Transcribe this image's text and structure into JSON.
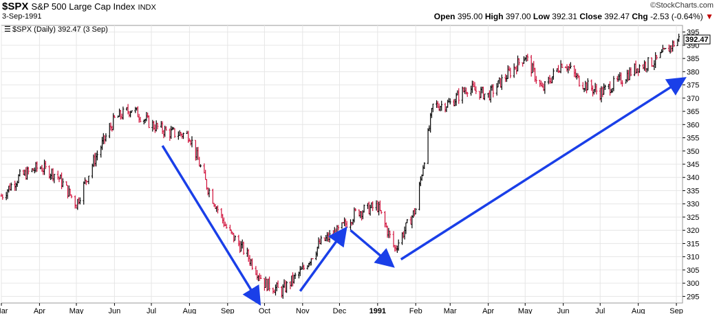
{
  "header": {
    "symbol": "$SPX",
    "name": "S&P 500 Large Cap Index",
    "exchange": "INDX",
    "date": "3-Sep-1991",
    "brand": "©StockCharts.com",
    "open_label": "Open",
    "open": "395.00",
    "high_label": "High",
    "high": "397.00",
    "low_label": "Low",
    "low": "392.31",
    "close_label": "Close",
    "close": "392.47",
    "chg_label": "Chg",
    "chg": "-2.53 (-0.64%)",
    "down_arrow": "▼"
  },
  "legend": "$SPX (Daily) 392.47 (3 Sep)",
  "last_price_tag": "392.47",
  "colors": {
    "up": "#000000",
    "down": "#d0103a",
    "arrow": "#1a3fe8",
    "grid": "#e6e6e6"
  },
  "chart_data": {
    "type": "line",
    "series": [
      {
        "name": "$SPX (Daily)",
        "x": [
          "1990-03-01",
          "1990-03-15",
          "1990-04-01",
          "1990-04-15",
          "1990-05-01",
          "1990-05-15",
          "1990-06-01",
          "1990-06-15",
          "1990-07-01",
          "1990-07-15",
          "1990-08-01",
          "1990-08-15",
          "1990-09-01",
          "1990-09-15",
          "1990-10-01",
          "1990-10-15",
          "1990-11-01",
          "1990-11-15",
          "1990-12-01",
          "1990-12-15",
          "1991-01-01",
          "1991-01-15",
          "1991-02-01",
          "1991-02-15",
          "1991-03-01",
          "1991-03-15",
          "1991-04-01",
          "1991-04-15",
          "1991-05-01",
          "1991-05-15",
          "1991-06-01",
          "1991-06-15",
          "1991-07-01",
          "1991-07-15",
          "1991-08-01",
          "1991-08-15",
          "1991-09-03"
        ],
        "values": [
          333,
          340,
          344,
          341,
          330,
          346,
          362,
          366,
          360,
          357,
          356,
          337,
          320,
          312,
          300,
          297,
          305,
          315,
          320,
          327,
          329,
          313,
          328,
          367,
          368,
          374,
          371,
          378,
          386,
          373,
          384,
          376,
          372,
          376,
          382,
          384,
          392.47
        ]
      }
    ],
    "xticks": [
      "Mar",
      "Apr",
      "May",
      "Jun",
      "Jul",
      "Aug",
      "Sep",
      "Oct",
      "Nov",
      "Dec",
      "1991",
      "Feb",
      "Mar",
      "Apr",
      "May",
      "Jun",
      "Jul",
      "Aug",
      "Sep"
    ],
    "xtick_dates": [
      "1990-03-01",
      "1990-04-01",
      "1990-05-01",
      "1990-06-01",
      "1990-07-01",
      "1990-08-01",
      "1990-09-01",
      "1990-10-01",
      "1990-11-01",
      "1990-12-01",
      "1991-01-01",
      "1991-02-01",
      "1991-03-01",
      "1991-04-01",
      "1991-05-01",
      "1991-06-01",
      "1991-07-01",
      "1991-08-01",
      "1991-09-01"
    ],
    "yticks": [
      295,
      300,
      305,
      310,
      315,
      320,
      325,
      330,
      335,
      340,
      345,
      350,
      355,
      360,
      365,
      370,
      375,
      380,
      385,
      390,
      395
    ],
    "ylim": [
      292.5,
      397.5
    ],
    "xlim": [
      "1990-03-01",
      "1991-09-06"
    ],
    "grid": true,
    "annotations": [
      {
        "type": "arrow",
        "from": [
          "1990-07-10",
          352
        ],
        "to": [
          "1990-09-26",
          293
        ]
      },
      {
        "type": "arrow",
        "from": [
          "1990-10-30",
          297
        ],
        "to": [
          "1990-12-05",
          320
        ]
      },
      {
        "type": "arrow",
        "from": [
          "1990-12-10",
          320
        ],
        "to": [
          "1991-01-12",
          307
        ]
      },
      {
        "type": "arrow",
        "from": [
          "1991-01-20",
          309
        ],
        "to": [
          "1991-09-06",
          377
        ]
      }
    ]
  }
}
